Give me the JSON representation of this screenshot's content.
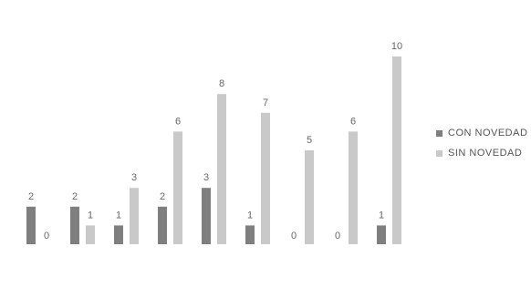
{
  "chart_data": {
    "type": "bar",
    "categories": [
      "",
      "",
      "",
      "",
      "",
      "",
      "",
      "",
      ""
    ],
    "series": [
      {
        "name": "CON NOVEDAD",
        "values": [
          2,
          2,
          1,
          2,
          3,
          1,
          0,
          0,
          1
        ],
        "color": "#7f7f7f"
      },
      {
        "name": "SIN NOVEDAD",
        "values": [
          0,
          1,
          3,
          6,
          8,
          7,
          5,
          6,
          10
        ],
        "color": "#c9c9c9"
      }
    ],
    "ylim": [
      0,
      10
    ],
    "grid": false,
    "legend_position": "right",
    "title": "",
    "xlabel": "",
    "ylabel": ""
  }
}
